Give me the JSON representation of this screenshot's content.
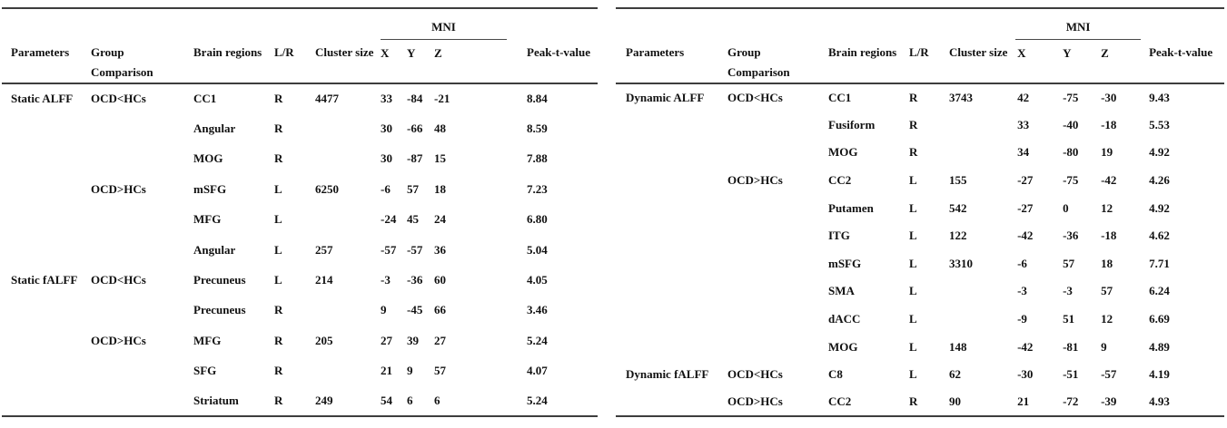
{
  "tables": [
    {
      "title": "static-parameters-table",
      "mni_label": "MNI",
      "headers": {
        "parameters": "Parameters",
        "group_line1": "Group",
        "group_line2": "Comparison",
        "brain_regions": "Brain regions",
        "lr": "L/R",
        "cluster_size": "Cluster size",
        "x": "X",
        "y": "Y",
        "z": "Z",
        "peak": "Peak-t-value"
      },
      "rows": [
        [
          "Static ALFF",
          "OCD<HCs",
          "CC1",
          "R",
          "4477",
          "33",
          "-84",
          "-21",
          "8.84"
        ],
        [
          "",
          "",
          "Angular",
          "R",
          "",
          "30",
          "-66",
          "48",
          "8.59"
        ],
        [
          "",
          "",
          "MOG",
          "R",
          "",
          "30",
          "-87",
          "15",
          "7.88"
        ],
        [
          "",
          "OCD>HCs",
          "mSFG",
          "L",
          "6250",
          "-6",
          "57",
          "18",
          "7.23"
        ],
        [
          "",
          "",
          "MFG",
          "L",
          "",
          "-24",
          "45",
          "24",
          "6.80"
        ],
        [
          "",
          "",
          "Angular",
          "L",
          "257",
          "-57",
          "-57",
          "36",
          "5.04"
        ],
        [
          "Static fALFF",
          "OCD<HCs",
          "Precuneus",
          "L",
          "214",
          "-3",
          "-36",
          "60",
          "4.05"
        ],
        [
          "",
          "",
          "Precuneus",
          "R",
          "",
          "9",
          "-45",
          "66",
          "3.46"
        ],
        [
          "",
          "OCD>HCs",
          "MFG",
          "R",
          "205",
          "27",
          "39",
          "27",
          "5.24"
        ],
        [
          "",
          "",
          "SFG",
          "R",
          "",
          "21",
          "9",
          "57",
          "4.07"
        ],
        [
          "",
          "",
          "Striatum",
          "R",
          "249",
          "54",
          "6",
          "6",
          "5.24"
        ]
      ]
    },
    {
      "title": "dynamic-parameters-table",
      "mni_label": "MNI",
      "headers": {
        "parameters": "Parameters",
        "group_line1": "Group",
        "group_line2": "Comparison",
        "brain_regions": "Brain regions",
        "lr": "L/R",
        "cluster_size": "Cluster size",
        "x": "X",
        "y": "Y",
        "z": "Z",
        "peak": "Peak-t-value"
      },
      "rows": [
        [
          "Dynamic ALFF",
          "OCD<HCs",
          "CC1",
          "R",
          "3743",
          "42",
          "-75",
          "-30",
          "9.43"
        ],
        [
          "",
          "",
          "Fusiform",
          "R",
          "",
          "33",
          "-40",
          "-18",
          "5.53"
        ],
        [
          "",
          "",
          "MOG",
          "R",
          "",
          "34",
          "-80",
          "19",
          "4.92"
        ],
        [
          "",
          "OCD>HCs",
          "CC2",
          "L",
          "155",
          "-27",
          "-75",
          "-42",
          "4.26"
        ],
        [
          "",
          "",
          "Putamen",
          "L",
          "542",
          "-27",
          "0",
          "12",
          "4.92"
        ],
        [
          "",
          "",
          "ITG",
          "L",
          "122",
          "-42",
          "-36",
          "-18",
          "4.62"
        ],
        [
          "",
          "",
          "mSFG",
          "L",
          "3310",
          "-6",
          "57",
          "18",
          "7.71"
        ],
        [
          "",
          "",
          "SMA",
          "L",
          "",
          "-3",
          "-3",
          "57",
          "6.24"
        ],
        [
          "",
          "",
          "dACC",
          "L",
          "",
          "-9",
          "51",
          "12",
          "6.69"
        ],
        [
          "",
          "",
          "MOG",
          "L",
          "148",
          "-42",
          "-81",
          "9",
          "4.89"
        ],
        [
          "Dynamic fALFF",
          "OCD<HCs",
          "C8",
          "L",
          "62",
          "-30",
          "-51",
          "-57",
          "4.19"
        ],
        [
          "",
          "OCD>HCs",
          "CC2",
          "R",
          "90",
          "21",
          "-72",
          "-39",
          "4.93"
        ]
      ]
    }
  ]
}
